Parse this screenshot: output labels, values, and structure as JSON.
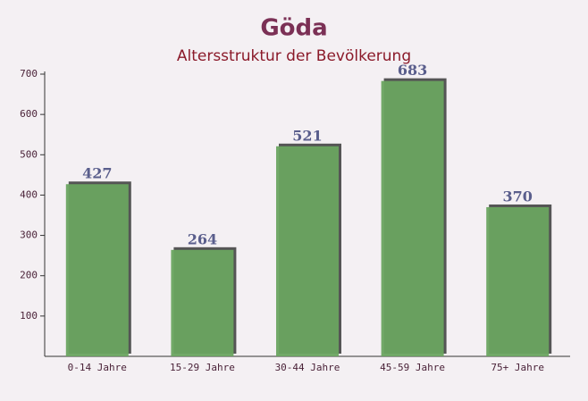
{
  "chart_data": {
    "type": "bar",
    "title": "Göda",
    "subtitle": "Altersstruktur der Bevölkerung",
    "categories": [
      "0-14 Jahre",
      "15-29 Jahre",
      "30-44 Jahre",
      "45-59 Jahre",
      "75+ Jahre"
    ],
    "values": [
      427,
      264,
      521,
      683,
      370
    ],
    "color": "#6aa460",
    "ylim": [
      0,
      700
    ],
    "yticks": [
      100,
      200,
      300,
      400,
      500,
      600,
      700
    ]
  }
}
